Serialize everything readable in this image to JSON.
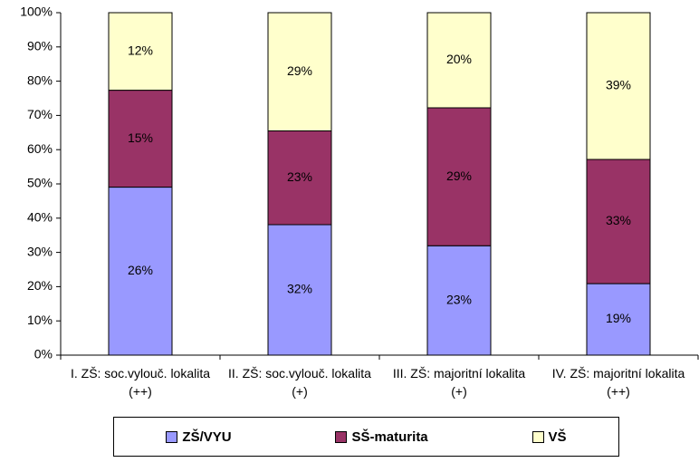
{
  "chart_data": {
    "type": "bar",
    "stacking": "percent",
    "categories": [
      "I. ZŠ: soc.vylouč. lokalita (++)",
      "II. ZŠ: soc.vylouč. lokalita (+)",
      "III. ZŠ: majoritní lokalita (+)",
      "IV. ZŠ: majoritní lokalita (++)"
    ],
    "series": [
      {
        "name": "ZŠ/VYU",
        "color": "#9999ff",
        "values": [
          26,
          32,
          23,
          19
        ],
        "value_labels": [
          "26%",
          "32%",
          "23%",
          "19%"
        ]
      },
      {
        "name": "SŠ-maturita",
        "color": "#993366",
        "values": [
          15,
          23,
          29,
          33
        ],
        "value_labels": [
          "15%",
          "23%",
          "29%",
          "33%"
        ]
      },
      {
        "name": "VŠ",
        "color": "#ffffcc",
        "values": [
          12,
          29,
          20,
          39
        ],
        "value_labels": [
          "12%",
          "29%",
          "20%",
          "39%"
        ]
      }
    ],
    "ylim": [
      0,
      100
    ],
    "yticks": [
      {
        "value": 0,
        "label": "0%"
      },
      {
        "value": 10,
        "label": "10%"
      },
      {
        "value": 20,
        "label": "20%"
      },
      {
        "value": 30,
        "label": "30%"
      },
      {
        "value": 40,
        "label": "40%"
      },
      {
        "value": 50,
        "label": "50%"
      },
      {
        "value": 60,
        "label": "60%"
      },
      {
        "value": 70,
        "label": "70%"
      },
      {
        "value": 80,
        "label": "80%"
      },
      {
        "value": 90,
        "label": "90%"
      },
      {
        "value": 100,
        "label": "100%"
      }
    ],
    "legend": "bottom"
  }
}
